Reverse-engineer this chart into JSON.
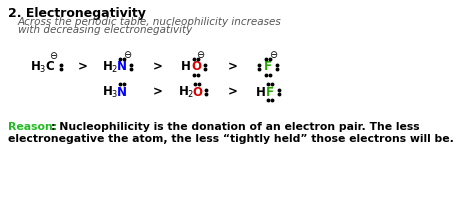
{
  "title": "2. Electronegativity",
  "subtitle_line1": "Across the periodic table, nucleophilicity increases",
  "subtitle_line2": "with decreasing electronegativity",
  "bg_color": "#ffffff",
  "title_color": "#000000",
  "subtitle_color": "#555555",
  "reason_label": "Reason:",
  "reason_label_color": "#22bb22",
  "reason_line1": ": Nucleophilicity is the donation of an electron pair. The less",
  "reason_line2": "electronegative the atom, the less “tightly held” those electrons will be.",
  "reason_text_color": "#000000",
  "neg_charge": "⊖",
  "h3c_color": "#000000",
  "n_color": "#0000ff",
  "o_color": "#dd0000",
  "f_color": "#22aa00"
}
